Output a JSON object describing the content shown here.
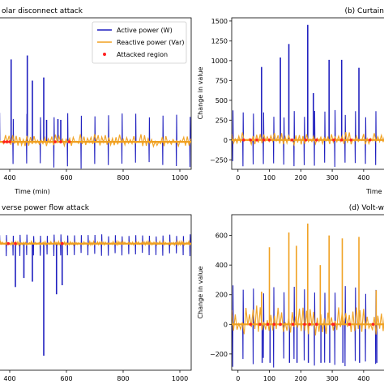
{
  "legend": {
    "active": "Active power (W)",
    "reactive": "Reactive power (Var)",
    "attacked": "Attacked region"
  },
  "colors": {
    "active": "#1f1fbf",
    "reactive": "#f0a020",
    "attacked": "#ff2020"
  },
  "chart_data": [
    {
      "id": "a",
      "type": "line",
      "title": "olar disconnect attack",
      "xlabel": "Time (min)",
      "ylabel": "",
      "xlim": [
        360,
        1040
      ],
      "ylim": [
        -350,
        1580
      ],
      "xticks": [
        400,
        600,
        800,
        1000
      ],
      "yticks": [],
      "baseline": 0,
      "spike_low": -300,
      "spike_high": 330,
      "tall_spikes": [
        {
          "x": 405,
          "y": 1050
        },
        {
          "x": 462,
          "y": 1100
        },
        {
          "x": 480,
          "y": 780
        },
        {
          "x": 520,
          "y": 820
        },
        {
          "x": 530,
          "y": 280
        },
        {
          "x": 570,
          "y": 290
        },
        {
          "x": 580,
          "y": 280
        }
      ],
      "attacked_x": [
        380,
        390,
        400,
        560,
        580,
        610
      ]
    },
    {
      "id": "b",
      "type": "line",
      "title": "(b) Curtain",
      "xlabel": "Time",
      "ylabel": "Change in value",
      "xlim": [
        -20,
        470
      ],
      "ylim": [
        -370,
        1540
      ],
      "xticks": [
        0,
        100,
        200,
        300,
        400
      ],
      "yticks": [
        -250,
        0,
        250,
        500,
        750,
        1000,
        1250,
        1500
      ],
      "baseline": 0,
      "spike_low": -300,
      "spike_high": 330,
      "tall_spikes": [
        {
          "x": 75,
          "y": 920
        },
        {
          "x": 135,
          "y": 1040
        },
        {
          "x": 162,
          "y": 1210
        },
        {
          "x": 222,
          "y": 1450
        },
        {
          "x": 240,
          "y": 590
        },
        {
          "x": 290,
          "y": 1010
        },
        {
          "x": 330,
          "y": 1010
        },
        {
          "x": 385,
          "y": 910
        }
      ],
      "attacked_x": [
        18,
        40,
        60,
        82,
        100,
        172,
        216,
        250,
        305,
        330,
        360,
        420
      ]
    },
    {
      "id": "c",
      "type": "line",
      "title": "verse power flow attack",
      "xlabel": "",
      "ylabel": "",
      "xlim": [
        360,
        1040
      ],
      "ylim": [
        -700,
        160
      ],
      "xticks": [
        400,
        600,
        800,
        1000
      ],
      "yticks": [],
      "baseline": 0,
      "spike_low": -60,
      "spike_high": 45,
      "tall_spikes": [
        {
          "x": 420,
          "y": -240
        },
        {
          "x": 450,
          "y": -190
        },
        {
          "x": 480,
          "y": -210
        },
        {
          "x": 520,
          "y": -620
        },
        {
          "x": 565,
          "y": -280
        },
        {
          "x": 585,
          "y": -230
        }
      ],
      "attacked_x": [
        395,
        420,
        585
      ]
    },
    {
      "id": "d",
      "type": "line",
      "title": "(d) Volt-w",
      "xlabel": "",
      "ylabel": "Change in value",
      "xlim": [
        -20,
        470
      ],
      "ylim": [
        -310,
        740
      ],
      "xticks": [
        0,
        100,
        200,
        300,
        400
      ],
      "yticks": [
        -200,
        0,
        200,
        400,
        600
      ],
      "baseline": 0,
      "spike_low": -260,
      "spike_high": 230,
      "tall_spikes": [
        {
          "x": 75,
          "y": 220
        },
        {
          "x": 100,
          "y": 520
        },
        {
          "x": 162,
          "y": 620
        },
        {
          "x": 186,
          "y": 530
        },
        {
          "x": 222,
          "y": 680
        },
        {
          "x": 262,
          "y": 400
        },
        {
          "x": 290,
          "y": 600
        },
        {
          "x": 332,
          "y": 580
        },
        {
          "x": 385,
          "y": 590
        },
        {
          "x": 440,
          "y": 230
        }
      ],
      "attacked_x": [
        40,
        70,
        95,
        115,
        135,
        175,
        212,
        228,
        250,
        302,
        305,
        355,
        430
      ]
    }
  ]
}
